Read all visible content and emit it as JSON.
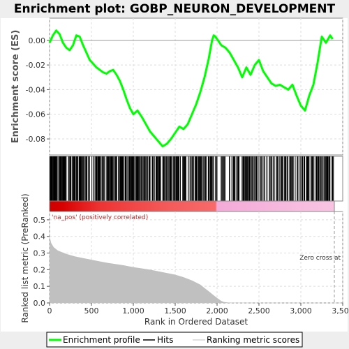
{
  "chart_data": {
    "type": "line",
    "title": "Enrichment plot: GOBP_NEURON_DEVELOPMENT",
    "top_panel": {
      "ylabel": "Enrichment score (ES)",
      "ylim": [
        -0.093,
        0.018
      ],
      "yticks": [
        0.0,
        -0.02,
        -0.04,
        -0.06,
        -0.08
      ],
      "ytick_labels": [
        "0.00",
        "-0.02",
        "-0.04",
        "-0.06",
        "-0.08"
      ],
      "grid": true,
      "series": [
        {
          "name": "Enrichment profile",
          "color": "#00ff00",
          "x": [
            0,
            40,
            80,
            120,
            160,
            200,
            240,
            280,
            320,
            360,
            400,
            440,
            480,
            520,
            560,
            600,
            640,
            680,
            720,
            760,
            800,
            840,
            880,
            920,
            960,
            1000,
            1050,
            1100,
            1150,
            1200,
            1250,
            1300,
            1350,
            1400,
            1450,
            1500,
            1550,
            1600,
            1650,
            1700,
            1750,
            1800,
            1850,
            1900,
            1940,
            1960,
            1980,
            2000,
            2050,
            2100,
            2150,
            2200,
            2250,
            2300,
            2350,
            2400,
            2450,
            2500,
            2550,
            2600,
            2650,
            2700,
            2750,
            2800,
            2850,
            2900,
            2950,
            3000,
            3050,
            3100,
            3150,
            3200,
            3250,
            3300,
            3350,
            3380
          ],
          "values": [
            -0.002,
            0.004,
            0.008,
            0.005,
            -0.002,
            -0.006,
            -0.008,
            -0.004,
            0.004,
            0.003,
            -0.004,
            -0.01,
            -0.016,
            -0.019,
            -0.022,
            -0.024,
            -0.026,
            -0.027,
            -0.025,
            -0.024,
            -0.028,
            -0.033,
            -0.04,
            -0.048,
            -0.055,
            -0.06,
            -0.057,
            -0.062,
            -0.068,
            -0.074,
            -0.078,
            -0.082,
            -0.086,
            -0.084,
            -0.08,
            -0.075,
            -0.07,
            -0.072,
            -0.068,
            -0.06,
            -0.052,
            -0.042,
            -0.03,
            -0.015,
            0.0,
            0.004,
            0.003,
            0.001,
            -0.004,
            -0.006,
            -0.01,
            -0.016,
            -0.022,
            -0.03,
            -0.022,
            -0.028,
            -0.02,
            -0.016,
            -0.025,
            -0.03,
            -0.035,
            -0.037,
            -0.036,
            -0.038,
            -0.04,
            -0.036,
            -0.045,
            -0.053,
            -0.057,
            -0.045,
            -0.036,
            -0.018,
            0.003,
            -0.002,
            0.004,
            0.001
          ]
        }
      ]
    },
    "hits_panel": {
      "legend_label": "Hits",
      "color": "#000000",
      "segments": [
        [
          0,
          130,
          60
        ],
        [
          130,
          2000,
          430
        ],
        [
          2000,
          2260,
          30
        ],
        [
          2260,
          3030,
          120
        ],
        [
          3030,
          3400,
          90
        ]
      ]
    },
    "heat_bar": {
      "note": "ranking color bar",
      "stops": [
        {
          "rank": 0,
          "color": "#cc0000"
        },
        {
          "rank": 150,
          "color": "#d80000"
        },
        {
          "rank": 600,
          "color": "#ee3333"
        },
        {
          "rank": 1400,
          "color": "#f45a5a"
        },
        {
          "rank": 1980,
          "color": "#f86a6a"
        },
        {
          "rank": 2000,
          "color": "#f4aad8"
        },
        {
          "rank": 3400,
          "color": "#f8c4e2"
        }
      ]
    },
    "bottom_panel": {
      "ylabel": "Ranked list metric (PreRanked)",
      "xlabel": "Rank in Ordered Dataset",
      "xlim": [
        0,
        3500
      ],
      "xticks": [
        0,
        500,
        1000,
        1500,
        2000,
        2500,
        3000,
        3500
      ],
      "xtick_labels": [
        "0",
        "500",
        "1,000",
        "1,500",
        "2,000",
        "2,500",
        "3,000",
        "3,500"
      ],
      "ylim": [
        0,
        0.55
      ],
      "yticks": [
        0.0,
        0.1,
        0.2,
        0.3,
        0.4,
        0.5
      ],
      "ytick_labels": [
        "0.0",
        "0.1",
        "0.2",
        "0.3",
        "0.4",
        "0.5"
      ],
      "annotation_pos": "'na_pos' (positively correlated)",
      "annotation_zero": "Zero cross at",
      "zero_cross_rank": 3400,
      "fill_color": "#c0c0c0",
      "series": [
        {
          "name": "Ranking metric scores",
          "x": [
            0,
            20,
            50,
            100,
            200,
            300,
            400,
            500,
            600,
            700,
            800,
            900,
            1000,
            1100,
            1200,
            1300,
            1400,
            1500,
            1600,
            1700,
            1800,
            1850,
            1900,
            1950,
            2000,
            2050,
            2080,
            2120,
            2160,
            2200,
            2400,
            2800,
            3200,
            3400
          ],
          "values": [
            0.4,
            0.36,
            0.335,
            0.315,
            0.295,
            0.28,
            0.27,
            0.26,
            0.25,
            0.24,
            0.233,
            0.225,
            0.215,
            0.208,
            0.2,
            0.19,
            0.18,
            0.17,
            0.155,
            0.135,
            0.11,
            0.09,
            0.07,
            0.05,
            0.03,
            0.012,
            0.006,
            0.003,
            0.002,
            0.001,
            0.0005,
            0.0003,
            0.0002,
            0.0001
          ]
        }
      ]
    },
    "legend": {
      "items": [
        {
          "label": "Enrichment profile",
          "color": "#00ff00"
        },
        {
          "label": "Hits",
          "color": "#000000"
        },
        {
          "label": "Ranking metric scores",
          "color": "#c0c0c0"
        }
      ]
    }
  }
}
